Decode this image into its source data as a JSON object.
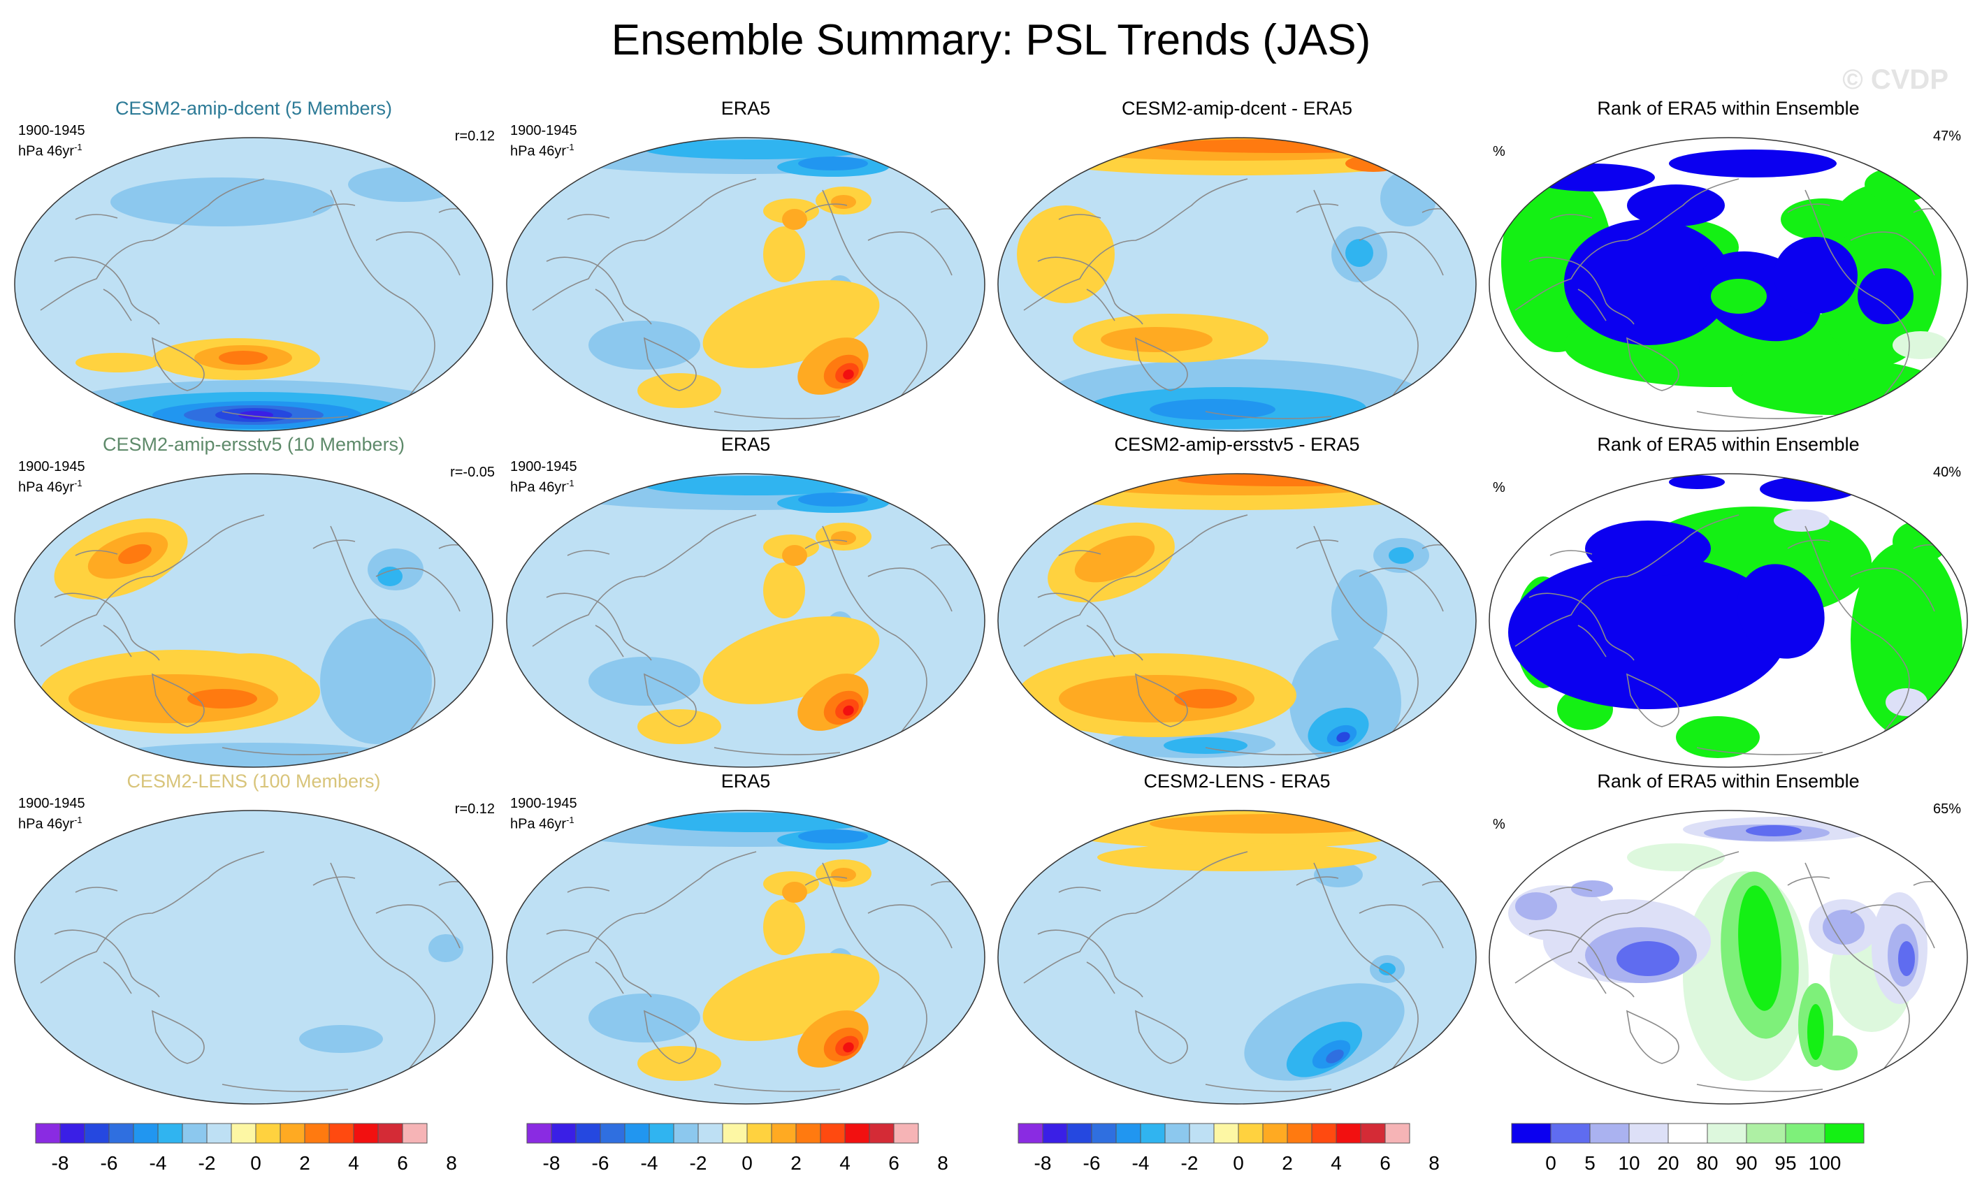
{
  "figure": {
    "title": "Ensemble Summary: PSL Trends (JAS)",
    "watermark": "© CVDP"
  },
  "rows": [
    {
      "model": {
        "title": "CESM2-amip-dcent (5 Members)",
        "title_color": "#2c7a96",
        "period": "1900-1945",
        "units": "hPa 46yr",
        "units_sup": "-1",
        "corr": "r=0.12"
      },
      "obs": {
        "title": "ERA5",
        "period": "1900-1945",
        "units": "hPa 46yr",
        "units_sup": "-1"
      },
      "diff": {
        "title": "CESM2-amip-dcent - ERA5"
      },
      "rank": {
        "title": "Rank of ERA5 within Ensemble",
        "unit": "%",
        "percent": "47%"
      }
    },
    {
      "model": {
        "title": "CESM2-amip-ersstv5 (10 Members)",
        "title_color": "#5e8a6a",
        "period": "1900-1945",
        "units": "hPa 46yr",
        "units_sup": "-1",
        "corr": "r=-0.05"
      },
      "obs": {
        "title": "ERA5",
        "period": "1900-1945",
        "units": "hPa 46yr",
        "units_sup": "-1"
      },
      "diff": {
        "title": "CESM2-amip-ersstv5 - ERA5"
      },
      "rank": {
        "title": "Rank of ERA5 within Ensemble",
        "unit": "%",
        "percent": "40%"
      }
    },
    {
      "model": {
        "title": "CESM2-LENS (100 Members)",
        "title_color": "#d8c47a",
        "period": "1900-1945",
        "units": "hPa 46yr",
        "units_sup": "-1",
        "corr": "r=0.12"
      },
      "obs": {
        "title": "ERA5",
        "period": "1900-1945",
        "units": "hPa 46yr",
        "units_sup": "-1"
      },
      "diff": {
        "title": "CESM2-LENS - ERA5"
      },
      "rank": {
        "title": "Rank of ERA5 within Ensemble",
        "unit": "%",
        "percent": "65%"
      }
    }
  ],
  "colorbars": {
    "trend": {
      "colors": [
        "#8a2be2",
        "#3a1fe6",
        "#2548e0",
        "#2f6fe0",
        "#2196f0",
        "#30b4f0",
        "#8cc8ee",
        "#bee0f4",
        "#fdf7a4",
        "#ffd23f",
        "#ffaa22",
        "#ff7a10",
        "#ff4a10",
        "#f21010",
        "#d42b36",
        "#f6b4b6"
      ],
      "ticks": [
        "-8",
        "-6",
        "-4",
        "-2",
        "0",
        "2",
        "4",
        "6",
        "8"
      ]
    },
    "rank": {
      "colors": [
        "#0b00f0",
        "#5f6cf0",
        "#aab2f0",
        "#dde0f7",
        "#ffffff",
        "#ddf8dd",
        "#aef0a4",
        "#7ef07a",
        "#14f014"
      ],
      "ticks": [
        "0",
        "5",
        "10",
        "20",
        "80",
        "90",
        "95",
        "100"
      ]
    }
  },
  "colors": {
    "land_line": "#8a8a8a",
    "map_border": "#333333"
  }
}
